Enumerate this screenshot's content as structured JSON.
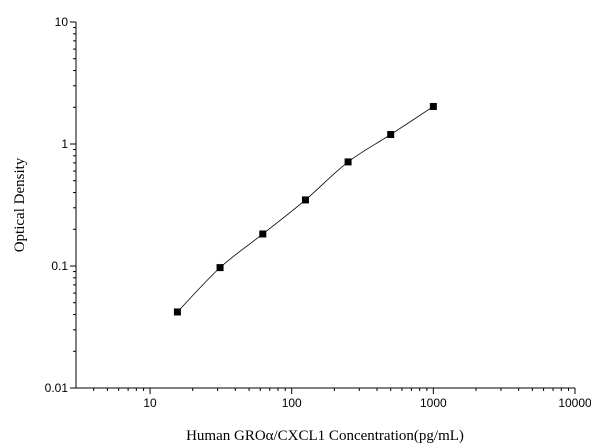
{
  "chart_data": {
    "type": "scatter",
    "title": "",
    "xlabel": "Human GROα/CXCL1 Concentration(pg/mL)",
    "ylabel": "Optical Density",
    "xscale": "log",
    "yscale": "log",
    "xlim": [
      3,
      10000
    ],
    "ylim": [
      0.01,
      10
    ],
    "xticks": [
      10,
      100,
      1000,
      10000
    ],
    "xtick_labels": [
      "10",
      "100",
      "1000",
      "10000"
    ],
    "yticks": [
      0.01,
      0.1,
      1,
      10
    ],
    "ytick_labels": [
      "0.01",
      "0.1",
      "1",
      "10"
    ],
    "grid": false,
    "legend": "none",
    "fit_curve": true,
    "marker": "square",
    "color": "#000000",
    "series": [
      {
        "x": [
          15.6,
          31.2,
          62.5,
          125,
          250,
          500,
          1000
        ],
        "y": [
          0.042,
          0.097,
          0.183,
          0.348,
          0.713,
          1.196,
          2.031
        ]
      }
    ]
  }
}
